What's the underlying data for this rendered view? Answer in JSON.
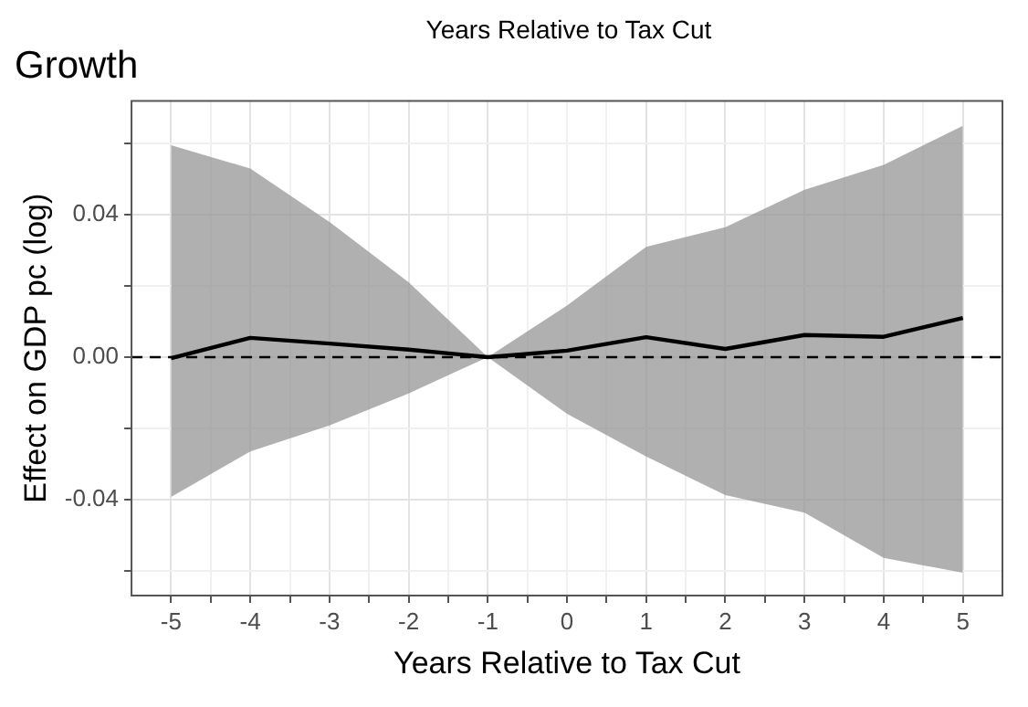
{
  "chart_data": {
    "type": "line",
    "title": "Growth",
    "xlabel": "Years Relative to Tax Cut",
    "ylabel": "Effect on GDP pc (log)",
    "annotations": [
      "Years Relative to Tax Cut"
    ],
    "x": [
      -5,
      -4,
      -3,
      -2,
      -1,
      0,
      1,
      2,
      3,
      4,
      5
    ],
    "series": [
      {
        "color": "#000000",
        "values": [
          -0.0003,
          0.0054,
          0.0038,
          0.0021,
          0,
          0.0018,
          0.0056,
          0.0023,
          0.0062,
          0.0057,
          0.011
        ],
        "lower": [
          -0.0393,
          -0.0265,
          -0.0192,
          -0.0102,
          0,
          -0.0159,
          -0.0279,
          -0.0388,
          -0.0437,
          -0.0564,
          -0.0606
        ],
        "upper": [
          0.0595,
          0.053,
          0.038,
          0.021,
          0,
          0.0145,
          0.031,
          0.0365,
          0.047,
          0.054,
          0.065
        ]
      }
    ],
    "xlim": [
      -5.5,
      5.5
    ],
    "xticks": [
      -5,
      {
        "value": -4.5,
        "label": null
      },
      -4,
      {
        "value": -3.5,
        "label": null
      },
      -3,
      {
        "value": -2.5,
        "label": null
      },
      -2,
      {
        "value": -1.5,
        "label": null
      },
      -1,
      {
        "value": -0.5,
        "label": null
      },
      0,
      {
        "value": 0.5,
        "label": null
      },
      1,
      {
        "value": 1.5,
        "label": null
      },
      2,
      {
        "value": 2.5,
        "label": null
      },
      3,
      {
        "value": 3.5,
        "label": null
      },
      4,
      {
        "value": 4.5,
        "label": null
      },
      5
    ],
    "ylim": [
      -0.067,
      0.072
    ],
    "yticks": [
      {
        "value": -0.06,
        "label": null
      },
      -0.04,
      {
        "value": -0.02,
        "label": null
      },
      {
        "value": 0,
        "label": "0.00"
      },
      {
        "value": 0.02,
        "label": null
      },
      0.04,
      {
        "value": 0.06,
        "label": null
      }
    ],
    "ref_lines": [
      {
        "axis": "y",
        "value": 0,
        "line_style": "dashed",
        "color": "#000000"
      }
    ],
    "grid": true,
    "legend": false,
    "marker": "none",
    "line_style": "solid"
  }
}
